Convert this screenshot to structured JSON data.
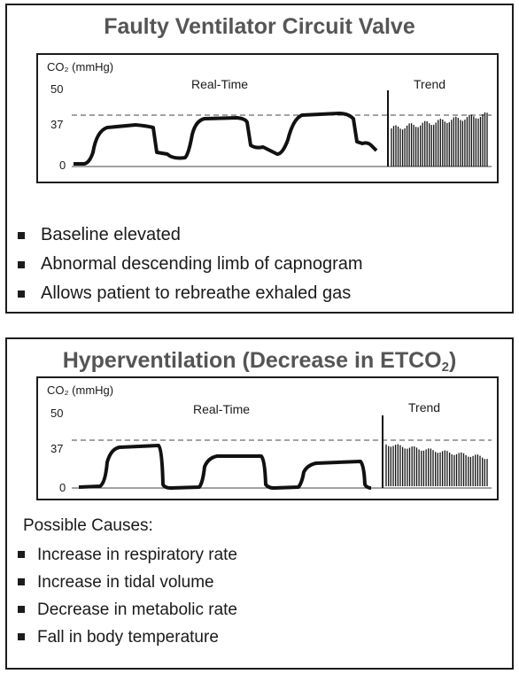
{
  "panels": [
    {
      "title": "Faulty Ventilator Circuit Valve",
      "title_sub": "",
      "bullets": [
        "Baseline elevated",
        "Abnormal descending limb of capnogram",
        "Allows patient to rebreathe exhaled gas"
      ]
    },
    {
      "title": "Hyperventilation (Decrease in ETCO",
      "title_sub": "2",
      "title_end": ")",
      "causes_label": "Possible Causes:",
      "bullets": [
        "Increase in respiratory rate",
        "Increase in tidal volume",
        "Decrease in metabolic rate",
        "Fall in body temperature"
      ]
    }
  ],
  "scope_labels": {
    "y_label": "CO₂ (mmHg)",
    "y_ticks": [
      "50",
      "37",
      "0"
    ],
    "realtime": "Real-Time",
    "trend": "Trend"
  },
  "chart_data": [
    {
      "type": "line",
      "ylabel": "CO₂ (mmHg)",
      "ylim": [
        0,
        50
      ],
      "reference_line": 37,
      "waveform_points": [
        [
          0,
          0
        ],
        [
          10,
          0
        ],
        [
          18,
          15
        ],
        [
          25,
          22
        ],
        [
          45,
          23
        ],
        [
          55,
          24
        ],
        [
          58,
          10
        ],
        [
          62,
          6
        ],
        [
          78,
          2
        ],
        [
          82,
          6
        ],
        [
          90,
          20
        ],
        [
          100,
          25
        ],
        [
          125,
          27
        ],
        [
          130,
          28
        ],
        [
          133,
          15
        ],
        [
          138,
          12
        ],
        [
          145,
          12
        ],
        [
          150,
          8
        ],
        [
          160,
          5
        ],
        [
          165,
          10
        ],
        [
          172,
          22
        ],
        [
          180,
          28
        ],
        [
          205,
          30
        ],
        [
          210,
          31
        ],
        [
          213,
          20
        ],
        [
          217,
          14
        ],
        [
          225,
          14
        ],
        [
          230,
          10
        ]
      ],
      "trend_rise": [
        25,
        34
      ]
    },
    {
      "type": "line",
      "ylabel": "CO₂ (mmHg)",
      "ylim": [
        0,
        50
      ],
      "reference_line": 37,
      "waveform_points": [
        [
          0,
          0
        ],
        [
          20,
          0
        ],
        [
          24,
          24
        ],
        [
          28,
          28
        ],
        [
          60,
          29
        ],
        [
          62,
          0
        ],
        [
          98,
          0
        ],
        [
          102,
          20
        ],
        [
          106,
          24
        ],
        [
          140,
          23
        ],
        [
          142,
          0
        ],
        [
          178,
          0
        ],
        [
          182,
          16
        ],
        [
          186,
          19
        ],
        [
          218,
          18
        ],
        [
          220,
          0
        ],
        [
          226,
          0
        ]
      ],
      "trend_fall": [
        30,
        21
      ]
    }
  ]
}
